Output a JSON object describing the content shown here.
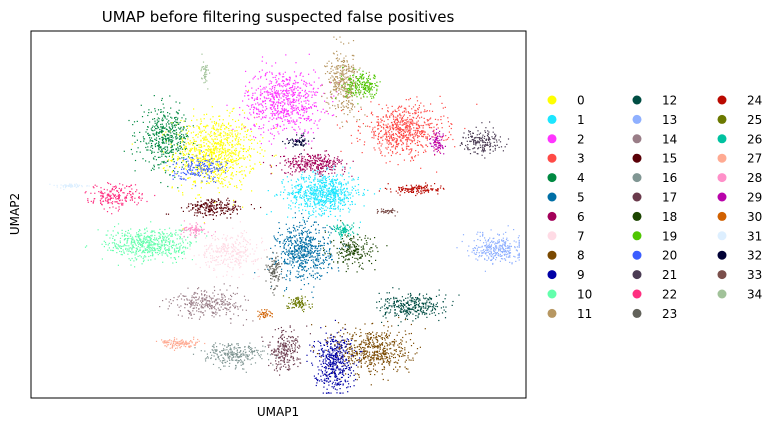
{
  "chart_data": {
    "type": "scatter",
    "title": "UMAP before filtering suspected false positives",
    "xlabel": "UMAP1",
    "ylabel": "UMAP2",
    "xticks": [],
    "yticks": [],
    "grid": false,
    "legend_position": "right",
    "legend_columns": 3,
    "series": [
      {
        "name": "0",
        "color": "#ffff00",
        "center": [
          0.37,
          0.67
        ],
        "spread": [
          0.075,
          0.09
        ],
        "n": 900
      },
      {
        "name": "1",
        "color": "#1ce6ff",
        "center": [
          0.59,
          0.56
        ],
        "spread": [
          0.065,
          0.05
        ],
        "n": 700
      },
      {
        "name": "2",
        "color": "#ff34ff",
        "center": [
          0.51,
          0.81
        ],
        "spread": [
          0.07,
          0.08
        ],
        "n": 700
      },
      {
        "name": "3",
        "color": "#ff4a46",
        "center": [
          0.75,
          0.73
        ],
        "spread": [
          0.075,
          0.06
        ],
        "n": 650
      },
      {
        "name": "4",
        "color": "#008941",
        "center": [
          0.27,
          0.71
        ],
        "spread": [
          0.045,
          0.07
        ],
        "n": 450
      },
      {
        "name": "5",
        "color": "#006fa6",
        "center": [
          0.55,
          0.4
        ],
        "spread": [
          0.05,
          0.07
        ],
        "n": 600
      },
      {
        "name": "6",
        "color": "#a30059",
        "center": [
          0.57,
          0.64
        ],
        "spread": [
          0.06,
          0.025
        ],
        "n": 300
      },
      {
        "name": "7",
        "color": "#ffdbe5",
        "center": [
          0.4,
          0.4
        ],
        "spread": [
          0.055,
          0.045
        ],
        "n": 300
      },
      {
        "name": "8",
        "color": "#7a4900",
        "center": [
          0.69,
          0.13
        ],
        "spread": [
          0.07,
          0.06
        ],
        "n": 550
      },
      {
        "name": "9",
        "color": "#0000a6",
        "center": [
          0.61,
          0.1
        ],
        "spread": [
          0.035,
          0.07
        ],
        "n": 450
      },
      {
        "name": "10",
        "color": "#63ffac",
        "center": [
          0.24,
          0.42
        ],
        "spread": [
          0.08,
          0.04
        ],
        "n": 550
      },
      {
        "name": "11",
        "color": "#b79762",
        "center": [
          0.63,
          0.86
        ],
        "spread": [
          0.03,
          0.075
        ],
        "n": 380
      },
      {
        "name": "12",
        "color": "#004d43",
        "center": [
          0.77,
          0.25
        ],
        "spread": [
          0.06,
          0.03
        ],
        "n": 320
      },
      {
        "name": "13",
        "color": "#8fb0ff",
        "center": [
          0.94,
          0.41
        ],
        "spread": [
          0.045,
          0.035
        ],
        "n": 300
      },
      {
        "name": "14",
        "color": "#997d87",
        "center": [
          0.36,
          0.26
        ],
        "spread": [
          0.065,
          0.035
        ],
        "n": 300
      },
      {
        "name": "15",
        "color": "#5a0007",
        "center": [
          0.37,
          0.52
        ],
        "spread": [
          0.055,
          0.02
        ],
        "n": 220
      },
      {
        "name": "16",
        "color": "#809693",
        "center": [
          0.41,
          0.12
        ],
        "spread": [
          0.055,
          0.03
        ],
        "n": 250
      },
      {
        "name": "17",
        "color": "#6a3a4c",
        "center": [
          0.51,
          0.13
        ],
        "spread": [
          0.03,
          0.05
        ],
        "n": 220
      },
      {
        "name": "18",
        "color": "#1b4400",
        "center": [
          0.65,
          0.4
        ],
        "spread": [
          0.04,
          0.04
        ],
        "n": 200
      },
      {
        "name": "19",
        "color": "#4fc601",
        "center": [
          0.67,
          0.85
        ],
        "spread": [
          0.035,
          0.03
        ],
        "n": 200
      },
      {
        "name": "20",
        "color": "#3b5dff",
        "center": [
          0.34,
          0.63
        ],
        "spread": [
          0.05,
          0.03
        ],
        "n": 180
      },
      {
        "name": "21",
        "color": "#4a3b53",
        "center": [
          0.91,
          0.7
        ],
        "spread": [
          0.035,
          0.03
        ],
        "n": 180
      },
      {
        "name": "22",
        "color": "#ff2f80",
        "center": [
          0.17,
          0.55
        ],
        "spread": [
          0.05,
          0.03
        ],
        "n": 200
      },
      {
        "name": "23",
        "color": "#61615a",
        "center": [
          0.49,
          0.35
        ],
        "spread": [
          0.012,
          0.04
        ],
        "n": 100
      },
      {
        "name": "24",
        "color": "#ba0900",
        "center": [
          0.78,
          0.57
        ],
        "spread": [
          0.045,
          0.012
        ],
        "n": 140
      },
      {
        "name": "25",
        "color": "#6b7900",
        "center": [
          0.54,
          0.26
        ],
        "spread": [
          0.02,
          0.018
        ],
        "n": 90
      },
      {
        "name": "26",
        "color": "#00c2a0",
        "center": [
          0.63,
          0.46
        ],
        "spread": [
          0.02,
          0.015
        ],
        "n": 90
      },
      {
        "name": "27",
        "color": "#ffaa92",
        "center": [
          0.3,
          0.15
        ],
        "spread": [
          0.035,
          0.012
        ],
        "n": 120
      },
      {
        "name": "28",
        "color": "#ff90c9",
        "center": [
          0.33,
          0.46
        ],
        "spread": [
          0.025,
          0.015
        ],
        "n": 80
      },
      {
        "name": "29",
        "color": "#b903aa",
        "center": [
          0.82,
          0.7
        ],
        "spread": [
          0.012,
          0.03
        ],
        "n": 80
      },
      {
        "name": "30",
        "color": "#d16100",
        "center": [
          0.47,
          0.23
        ],
        "spread": [
          0.012,
          0.01
        ],
        "n": 40
      },
      {
        "name": "31",
        "color": "#ddefff",
        "center": [
          0.08,
          0.58
        ],
        "spread": [
          0.025,
          0.005
        ],
        "n": 60
      },
      {
        "name": "32",
        "color": "#000035",
        "center": [
          0.54,
          0.7
        ],
        "spread": [
          0.02,
          0.015
        ],
        "n": 60
      },
      {
        "name": "33",
        "color": "#7b4f4b",
        "center": [
          0.72,
          0.51
        ],
        "spread": [
          0.02,
          0.006
        ],
        "n": 40
      },
      {
        "name": "34",
        "color": "#a1c299",
        "center": [
          0.35,
          0.89
        ],
        "spread": [
          0.008,
          0.03
        ],
        "n": 40
      }
    ]
  }
}
